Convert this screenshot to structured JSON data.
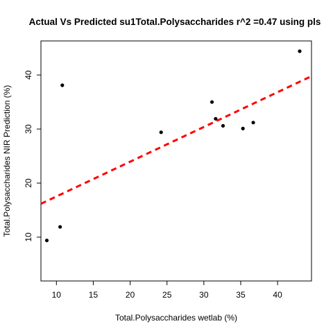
{
  "chart_data": {
    "type": "scatter",
    "title": "Actual Vs Predicted su1Total.Polysaccharides r^2 =0.47 using pls",
    "xlabel": "Total.Polysaccharides wetlab (%)",
    "ylabel": "Total.Polysaccharides NIR Prediction (%)",
    "xlim": [
      7.9,
      44.6
    ],
    "ylim": [
      1.9,
      46.3
    ],
    "xticks": [
      10,
      15,
      20,
      25,
      30,
      35,
      40
    ],
    "yticks": [
      10,
      20,
      30,
      40
    ],
    "grid": false,
    "points": [
      {
        "x": 8.7,
        "y": 9.4
      },
      {
        "x": 10.5,
        "y": 11.9
      },
      {
        "x": 10.8,
        "y": 38.1
      },
      {
        "x": 24.2,
        "y": 29.4
      },
      {
        "x": 31.1,
        "y": 35.0
      },
      {
        "x": 31.6,
        "y": 31.9
      },
      {
        "x": 32.6,
        "y": 30.6
      },
      {
        "x": 35.3,
        "y": 30.1
      },
      {
        "x": 36.7,
        "y": 31.2
      },
      {
        "x": 43.0,
        "y": 44.4
      }
    ],
    "fit_line": {
      "intercept": 11.1,
      "slope": 0.643
    },
    "colors": {
      "points": "#000000",
      "fit_line": "#ff0000"
    }
  }
}
